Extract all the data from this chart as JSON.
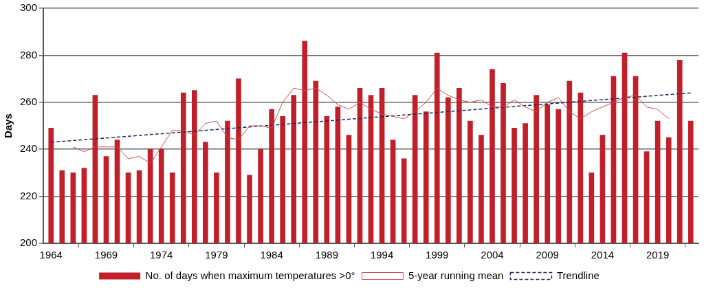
{
  "chart_data": {
    "type": "bar",
    "ylabel": "Days",
    "x": [
      1964,
      1965,
      1966,
      1967,
      1968,
      1969,
      1970,
      1971,
      1972,
      1973,
      1974,
      1975,
      1976,
      1977,
      1978,
      1979,
      1980,
      1981,
      1982,
      1983,
      1984,
      1985,
      1986,
      1987,
      1988,
      1989,
      1990,
      1991,
      1992,
      1993,
      1994,
      1995,
      1996,
      1997,
      1998,
      1999,
      2000,
      2001,
      2002,
      2003,
      2004,
      2005,
      2006,
      2007,
      2008,
      2009,
      2010,
      2011,
      2012,
      2013,
      2014,
      2015,
      2016,
      2017,
      2018,
      2019,
      2020,
      2021,
      2022
    ],
    "series": [
      {
        "name": "No. of days when maximum temperatures >0°",
        "color": "#c1202a",
        "values": [
          249,
          231,
          230,
          232,
          263,
          237,
          244,
          230,
          231,
          240,
          240,
          230,
          264,
          265,
          243,
          230,
          252,
          270,
          229,
          240,
          257,
          254,
          263,
          286,
          269,
          254,
          258,
          246,
          266,
          263,
          266,
          244,
          236,
          263,
          256,
          281,
          262,
          266,
          252,
          246,
          274,
          268,
          249,
          251,
          263,
          259,
          257,
          269,
          264,
          230,
          246,
          271,
          281,
          271,
          239,
          252,
          245,
          278,
          252
        ]
      },
      {
        "name": "5-year running mean",
        "type": "line",
        "color": "#d24a4a",
        "values": [
          null,
          null,
          241,
          239,
          241,
          241,
          241,
          236,
          237,
          234,
          241,
          248,
          248,
          246,
          251,
          252,
          245,
          244,
          250,
          250,
          249,
          260,
          266,
          265,
          266,
          263,
          259,
          257,
          260,
          257,
          255,
          254,
          253,
          256,
          260,
          266,
          263,
          261,
          260,
          261,
          258,
          258,
          261,
          258,
          256,
          260,
          262,
          256,
          253,
          256,
          258,
          260,
          262,
          263,
          258,
          257,
          253,
          null,
          null
        ]
      },
      {
        "name": "Trendline",
        "type": "line",
        "color": "#1f2a5c",
        "line_style": "dashed",
        "x": [
          1964,
          2022
        ],
        "values": [
          243,
          264
        ]
      }
    ],
    "xlim": [
      1963.3,
      2022.7
    ],
    "xticks": [
      1964,
      1969,
      1974,
      1979,
      1984,
      1989,
      1994,
      1999,
      2004,
      2009,
      2014,
      2019
    ],
    "ylim": [
      200,
      300
    ],
    "yticks": [
      200,
      220,
      240,
      260,
      280,
      300
    ],
    "grid": "y",
    "legend": "bottom",
    "marker": "none"
  }
}
